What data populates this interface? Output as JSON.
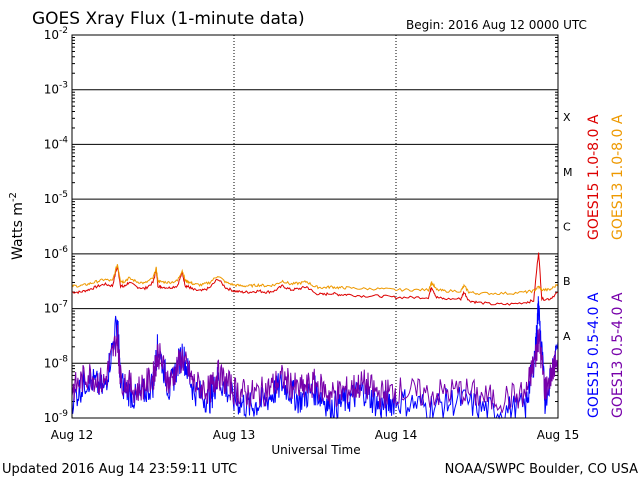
{
  "chart_data": {
    "type": "line",
    "title": "GOES Xray Flux (1-minute data)",
    "begin_label": "Begin:  2016 Aug 12 0000 UTC",
    "ylabel_main": "Watts m",
    "ylabel_exp": "-2",
    "xlabel": "Universal Time",
    "footer_left": "Updated 2016 Aug 14 23:59:11 UTC",
    "footer_right": "NOAA/SWPC Boulder, CO USA",
    "x_tick_labels": [
      "Aug 12",
      "Aug 13",
      "Aug 14",
      "Aug 15"
    ],
    "x_range_days": [
      0,
      3
    ],
    "y_scale": "log",
    "ylim": [
      1e-09,
      0.01
    ],
    "y_tick_labels": [
      {
        "exp": "-9",
        "value": 1e-09
      },
      {
        "exp": "-8",
        "value": 1e-08
      },
      {
        "exp": "-7",
        "value": 1e-07
      },
      {
        "exp": "-6",
        "value": 1e-06
      },
      {
        "exp": "-5",
        "value": 1e-05
      },
      {
        "exp": "-4",
        "value": 0.0001
      },
      {
        "exp": "-3",
        "value": 0.001
      },
      {
        "exp": "-2",
        "value": 0.01
      }
    ],
    "flare_classes": [
      {
        "letter": "A",
        "value": 1e-08
      },
      {
        "letter": "B",
        "value": 1e-07
      },
      {
        "letter": "C",
        "value": 1e-06
      },
      {
        "letter": "M",
        "value": 1e-05
      },
      {
        "letter": "X",
        "value": 0.0001
      }
    ],
    "legend": [
      {
        "label": "GOES15 1.0-8.0 A",
        "color": "#dd0000"
      },
      {
        "label": "GOES13 1.0-8.0 A",
        "color": "#ee9900"
      },
      {
        "label": "GOES15 0.5-4.0 A",
        "color": "#0000ff"
      },
      {
        "label": "GOES13 0.5-4.0 A",
        "color": "#7700aa"
      }
    ],
    "series": [
      {
        "name": "GOES15 1.0-8.0 A",
        "color": "#dd0000",
        "x": [
          0.0,
          0.05,
          0.1,
          0.15,
          0.2,
          0.25,
          0.28,
          0.3,
          0.32,
          0.35,
          0.4,
          0.45,
          0.5,
          0.52,
          0.53,
          0.55,
          0.6,
          0.65,
          0.68,
          0.7,
          0.72,
          0.75,
          0.8,
          0.85,
          0.9,
          0.95,
          1.0,
          1.05,
          1.1,
          1.15,
          1.2,
          1.25,
          1.3,
          1.35,
          1.4,
          1.45,
          1.5,
          1.55,
          1.6,
          1.65,
          1.7,
          1.8,
          1.9,
          2.0,
          2.1,
          2.2,
          2.22,
          2.25,
          2.3,
          2.4,
          2.42,
          2.45,
          2.5,
          2.6,
          2.7,
          2.8,
          2.85,
          2.88,
          2.9,
          2.95,
          3.0
        ],
        "y": [
          2e-07,
          2e-07,
          2.2e-07,
          2.5e-07,
          2.8e-07,
          2.6e-07,
          6e-07,
          2.6e-07,
          2.5e-07,
          3e-07,
          2.5e-07,
          2.3e-07,
          3e-07,
          5e-07,
          2.6e-07,
          2.5e-07,
          2.4e-07,
          2.6e-07,
          4.5e-07,
          2.6e-07,
          2.5e-07,
          2.2e-07,
          2.1e-07,
          2.4e-07,
          3.5e-07,
          2.4e-07,
          2.1e-07,
          2e-07,
          2e-07,
          2.1e-07,
          2e-07,
          2.1e-07,
          2.6e-07,
          2.2e-07,
          2.3e-07,
          2.5e-07,
          1.9e-07,
          1.8e-07,
          1.9e-07,
          1.8e-07,
          1.8e-07,
          1.7e-07,
          1.7e-07,
          1.6e-07,
          1.6e-07,
          1.6e-07,
          2.5e-07,
          1.6e-07,
          1.5e-07,
          1.5e-07,
          2e-07,
          1.4e-07,
          1.3e-07,
          1.2e-07,
          1.2e-07,
          1.3e-07,
          1.4e-07,
          1.1e-06,
          1.5e-07,
          1.5e-07,
          2e-07
        ]
      },
      {
        "name": "GOES13 1.0-8.0 A",
        "color": "#ee9900",
        "x": [
          0.0,
          0.05,
          0.1,
          0.15,
          0.2,
          0.25,
          0.28,
          0.3,
          0.32,
          0.35,
          0.4,
          0.45,
          0.5,
          0.52,
          0.53,
          0.55,
          0.6,
          0.65,
          0.68,
          0.7,
          0.72,
          0.75,
          0.8,
          0.85,
          0.9,
          0.95,
          1.0,
          1.05,
          1.1,
          1.15,
          1.2,
          1.25,
          1.3,
          1.35,
          1.4,
          1.45,
          1.5,
          1.55,
          1.6,
          1.65,
          1.7,
          1.8,
          1.9,
          2.0,
          2.1,
          2.2,
          2.22,
          2.25,
          2.3,
          2.4,
          2.42,
          2.45,
          2.5,
          2.6,
          2.7,
          2.8,
          2.85,
          2.88,
          2.9,
          2.95,
          3.0
        ],
        "y": [
          2.6e-07,
          2.6e-07,
          2.8e-07,
          3.1e-07,
          3.4e-07,
          3.2e-07,
          6.5e-07,
          3.2e-07,
          3.1e-07,
          3.6e-07,
          3.1e-07,
          2.9e-07,
          3.6e-07,
          5.5e-07,
          3.2e-07,
          3.1e-07,
          3e-07,
          3.2e-07,
          5e-07,
          3.2e-07,
          3.1e-07,
          2.8e-07,
          2.7e-07,
          3e-07,
          4e-07,
          3e-07,
          2.7e-07,
          2.6e-07,
          2.6e-07,
          2.7e-07,
          2.6e-07,
          2.7e-07,
          3.2e-07,
          2.8e-07,
          2.9e-07,
          3.1e-07,
          2.5e-07,
          2.4e-07,
          2.5e-07,
          2.4e-07,
          2.4e-07,
          2.3e-07,
          2.3e-07,
          2.2e-07,
          2.2e-07,
          2.2e-07,
          3e-07,
          2.2e-07,
          2.1e-07,
          2.1e-07,
          2.6e-07,
          2e-07,
          1.9e-07,
          1.9e-07,
          1.9e-07,
          2e-07,
          2.1e-07,
          2.5e-07,
          2.2e-07,
          2.2e-07,
          2.8e-07
        ]
      },
      {
        "name": "GOES15 0.5-4.0 A",
        "color": "#0000ff",
        "x": [
          0.0,
          0.1,
          0.2,
          0.28,
          0.3,
          0.4,
          0.5,
          0.53,
          0.6,
          0.68,
          0.75,
          0.85,
          0.9,
          1.0,
          1.1,
          1.2,
          1.3,
          1.4,
          1.5,
          1.6,
          1.7,
          1.8,
          1.9,
          2.0,
          2.2,
          2.4,
          2.6,
          2.8,
          2.86,
          2.88,
          2.92,
          3.0
        ],
        "y": [
          2e-09,
          5e-09,
          3e-09,
          6e-08,
          4e-09,
          2e-09,
          4e-09,
          2e-08,
          3e-09,
          1.5e-08,
          3e-09,
          2e-09,
          5e-09,
          2e-09,
          1.5e-09,
          2e-09,
          4e-09,
          2e-09,
          3e-09,
          1.5e-09,
          2e-09,
          3e-09,
          1.5e-09,
          2e-09,
          1.5e-09,
          2e-09,
          1.2e-09,
          1.5e-09,
          1.5e-08,
          1.1e-07,
          2e-09,
          2.5e-08
        ]
      },
      {
        "name": "GOES13 0.5-4.0 A",
        "color": "#7700aa",
        "x": [
          0.0,
          0.1,
          0.2,
          0.28,
          0.3,
          0.4,
          0.5,
          0.53,
          0.6,
          0.68,
          0.75,
          0.85,
          0.9,
          1.0,
          1.1,
          1.2,
          1.3,
          1.4,
          1.5,
          1.6,
          1.7,
          1.8,
          1.9,
          2.0,
          2.2,
          2.4,
          2.6,
          2.8,
          2.86,
          2.88,
          2.92,
          3.0
        ],
        "y": [
          3e-09,
          6e-09,
          4e-09,
          3e-08,
          5e-09,
          3e-09,
          5e-09,
          1.5e-08,
          4e-09,
          1.2e-08,
          4e-09,
          3e-09,
          6e-09,
          3e-09,
          2.5e-09,
          3e-09,
          5e-09,
          3e-09,
          4e-09,
          2.5e-09,
          3e-09,
          4e-09,
          2.5e-09,
          3e-09,
          2.5e-09,
          3e-09,
          2e-09,
          2.5e-09,
          1.2e-08,
          3e-08,
          3e-09,
          1.2e-08
        ]
      }
    ]
  }
}
